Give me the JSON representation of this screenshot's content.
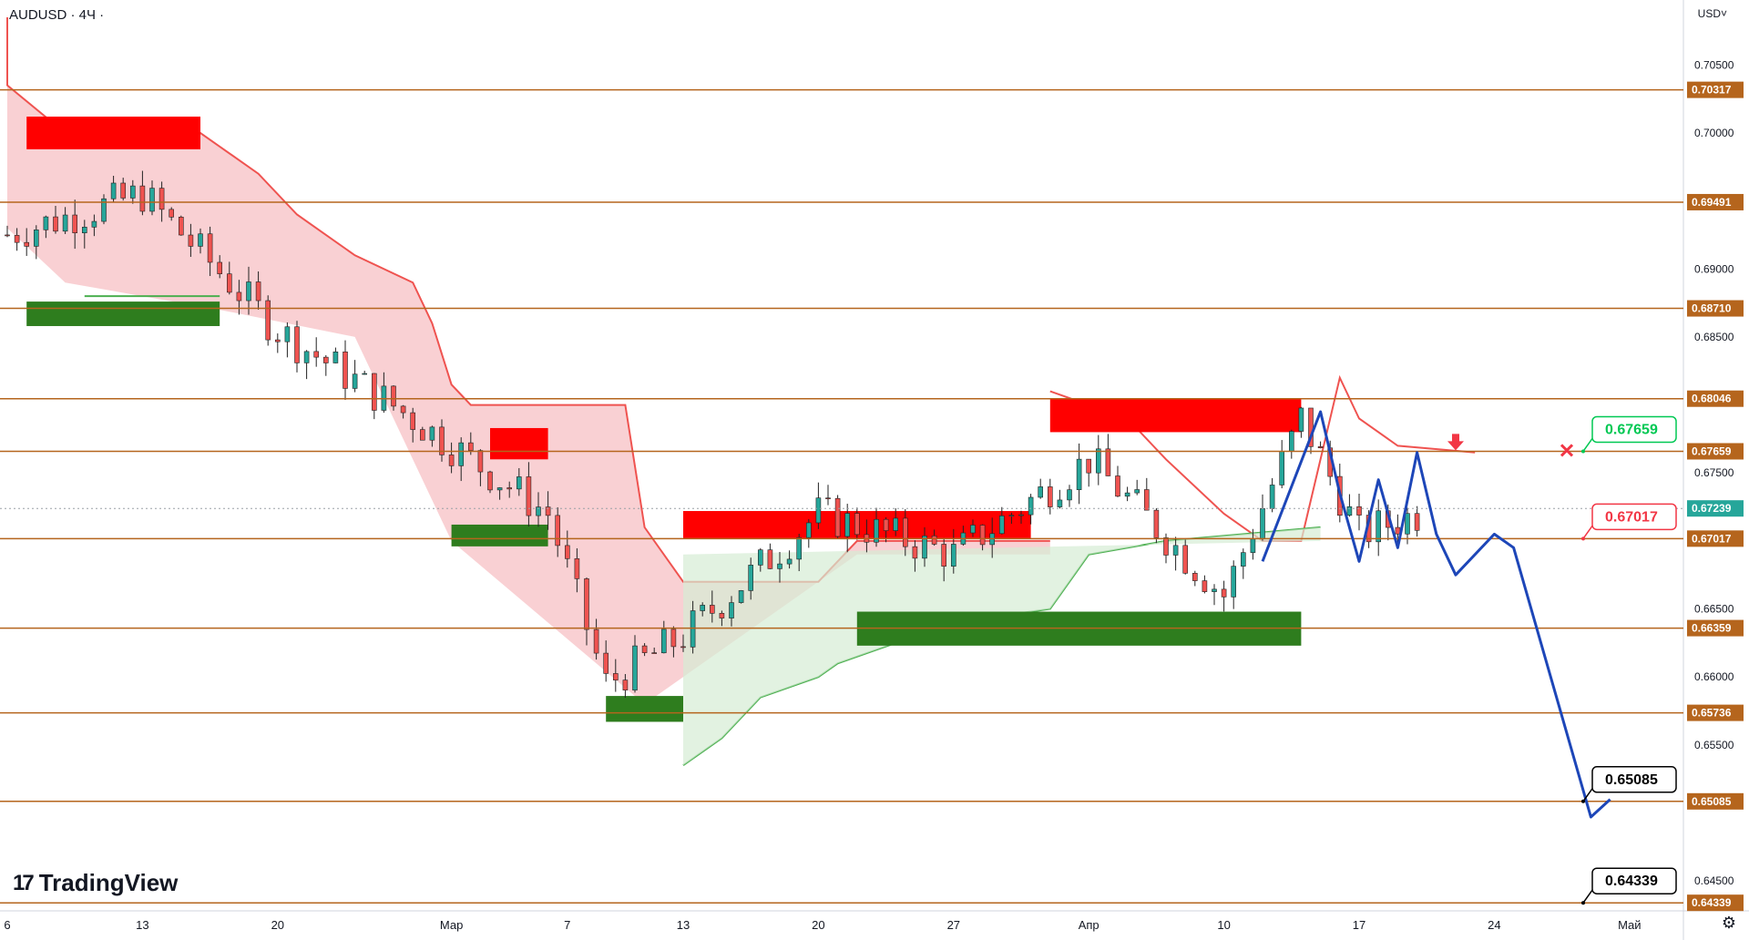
{
  "header": {
    "symbol": "AUDUSD · 4Ч ·",
    "currency": "USD˅"
  },
  "logo": {
    "mark": "17",
    "text": "TradingView"
  },
  "colors": {
    "level_line": "#b5651d",
    "level_tag_bg": "#b5651d",
    "current_price_tag": "#26a69a",
    "bull_candle": "#26a69a",
    "bear_candle": "#ef5350",
    "resistance_zone": "#ff0000",
    "support_zone": "#2e7d1e",
    "forecast_line": "#1d46b8",
    "red_band_fill": "#f8c8cb",
    "green_band_fill": "#d6ecd4",
    "take_profit_tag": "#00c853",
    "entry_tag": "#f23645",
    "target_tag": "#000000"
  },
  "chart_data": {
    "type": "line",
    "title": "AUDUSD · 4Ч",
    "ylim": [
      0.6428,
      0.7079
    ],
    "grid": false,
    "x_ticks": [
      "6",
      "13",
      "20",
      "Мар",
      "7",
      "13",
      "20",
      "27",
      "Апр",
      "10",
      "17",
      "24",
      "Май"
    ],
    "y_ticks": [
      "0.70500",
      "0.70000",
      "0.69000",
      "0.68500",
      "0.67500",
      "0.66500",
      "0.66000",
      "0.65500",
      "0.64500"
    ],
    "levels": [
      "0.70317",
      "0.69491",
      "0.68710",
      "0.68046",
      "0.67659",
      "0.67017",
      "0.66359",
      "0.65736",
      "0.65085",
      "0.64339"
    ],
    "current_price": "0.67239",
    "annotations": {
      "take_profit": "0.67659",
      "entry": "0.67017",
      "target_1": "0.65085",
      "target_2": "0.64339"
    },
    "resistance_zones": [
      {
        "x_start": "7 Feb",
        "x_end": "16 Feb",
        "y_low": 0.6988,
        "y_high": 0.7012
      },
      {
        "x_start": "3 Mar",
        "x_end": "6 Mar",
        "y_low": 0.676,
        "y_high": 0.6783
      },
      {
        "x_start": "13 Mar",
        "x_end": "31 Mar",
        "y_low": 0.6702,
        "y_high": 0.6722
      },
      {
        "x_start": "1 Apr",
        "x_end": "14 Apr",
        "y_low": 0.678,
        "y_high": 0.6805
      }
    ],
    "support_zones": [
      {
        "x_start": "7 Feb",
        "x_end": "17 Feb",
        "y_low": 0.6858,
        "y_high": 0.6876
      },
      {
        "x_start": "1 Mar",
        "x_end": "6 Mar",
        "y_low": 0.6696,
        "y_high": 0.6712
      },
      {
        "x_start": "9 Mar",
        "x_end": "13 Mar",
        "y_low": 0.6567,
        "y_high": 0.6586
      },
      {
        "x_start": "22 Mar",
        "x_end": "14 Apr",
        "y_low": 0.6623,
        "y_high": 0.6648
      }
    ],
    "forecast_path": {
      "x": [
        "12 Apr",
        "15 Apr",
        "16 Apr",
        "17 Apr",
        "18 Apr",
        "19 Apr",
        "20 Apr",
        "21 Apr",
        "22 Apr",
        "24 Apr",
        "25 Apr",
        "29 Apr",
        "30 Apr"
      ],
      "y": [
        0.6685,
        0.6795,
        0.6735,
        0.6685,
        0.6745,
        0.6695,
        0.6765,
        0.6705,
        0.6675,
        0.6705,
        0.6695,
        0.6497,
        0.651
      ]
    },
    "price_series": {
      "x": [
        "6 Feb",
        "13 Feb",
        "20 Feb",
        "27 Feb",
        "6 Mar",
        "9 Mar",
        "13 Mar",
        "20 Mar",
        "27 Mar",
        "3 Apr",
        "10 Apr",
        "14 Apr",
        "17 Apr",
        "20 Apr"
      ],
      "y": [
        0.6925,
        0.6955,
        0.6855,
        0.679,
        0.672,
        0.6595,
        0.663,
        0.672,
        0.669,
        0.676,
        0.666,
        0.679,
        0.6705,
        0.672
      ]
    }
  }
}
